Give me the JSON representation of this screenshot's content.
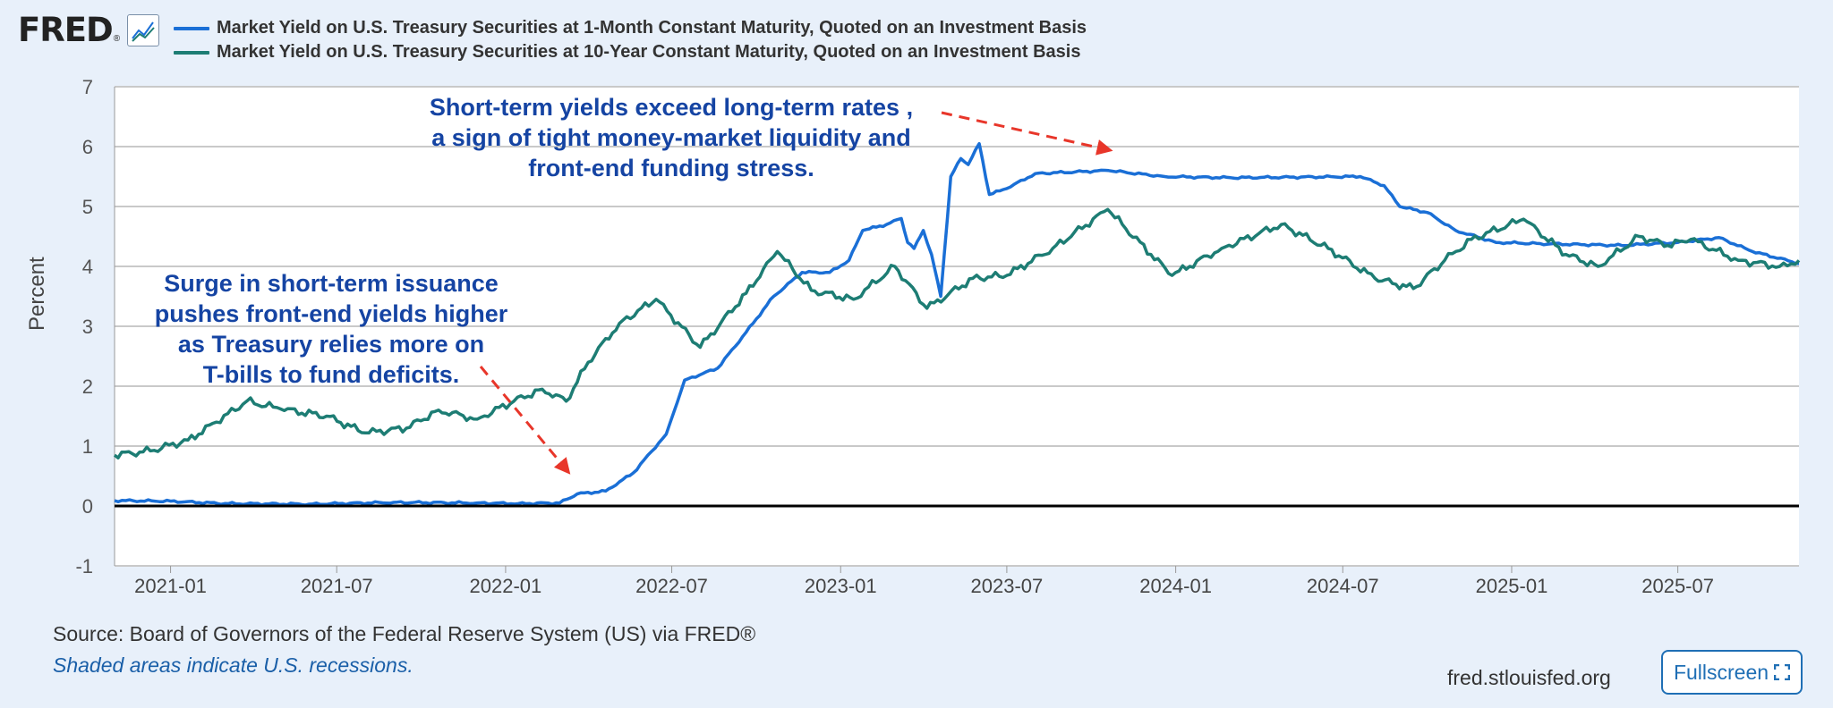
{
  "brand": {
    "logo_text": "FRED",
    "registered_mark": "®"
  },
  "colors": {
    "series1": "#1a6fd6",
    "series2": "#1d7d74",
    "annotation_text": "#1544a3",
    "annotation_arrow": "#e8362a",
    "zero_line": "#000000",
    "grid": "#c9c9c9"
  },
  "legend": [
    {
      "label": "Market Yield on U.S. Treasury Securities at 1-Month Constant Maturity, Quoted on an Investment Basis",
      "color": "#1a6fd6"
    },
    {
      "label": "Market Yield on U.S. Treasury Securities at 10-Year Constant Maturity, Quoted on an Investment Basis",
      "color": "#1d7d74"
    }
  ],
  "chart_data": {
    "type": "line",
    "ylabel": "Percent",
    "ylim": [
      -1,
      7
    ],
    "yticks": [
      -1,
      0,
      1,
      2,
      3,
      4,
      5,
      6,
      7
    ],
    "xlim": [
      "2020-11-01",
      "2025-11-10"
    ],
    "xticks": [
      "2021-01",
      "2021-07",
      "2022-01",
      "2022-07",
      "2023-01",
      "2023-07",
      "2024-01",
      "2024-07",
      "2025-01",
      "2025-07"
    ],
    "grid": true,
    "series": [
      {
        "name": "Market Yield on U.S. Treasury Securities at 1-Month Constant Maturity, Quoted on an Investment Basis",
        "points": [
          [
            "2020-11-01",
            0.09
          ],
          [
            "2021-01-01",
            0.08
          ],
          [
            "2021-03-01",
            0.04
          ],
          [
            "2021-06-01",
            0.03
          ],
          [
            "2021-09-01",
            0.06
          ],
          [
            "2021-12-01",
            0.05
          ],
          [
            "2022-01-15",
            0.04
          ],
          [
            "2022-03-01",
            0.05
          ],
          [
            "2022-03-20",
            0.2
          ],
          [
            "2022-04-20",
            0.25
          ],
          [
            "2022-05-20",
            0.55
          ],
          [
            "2022-06-25",
            1.2
          ],
          [
            "2022-07-15",
            2.1
          ],
          [
            "2022-08-20",
            2.3
          ],
          [
            "2022-09-20",
            2.9
          ],
          [
            "2022-10-20",
            3.5
          ],
          [
            "2022-11-20",
            3.9
          ],
          [
            "2022-12-20",
            3.9
          ],
          [
            "2023-01-10",
            4.1
          ],
          [
            "2023-01-25",
            4.6
          ],
          [
            "2023-02-20",
            4.7
          ],
          [
            "2023-03-08",
            4.8
          ],
          [
            "2023-03-15",
            4.4
          ],
          [
            "2023-03-22",
            4.3
          ],
          [
            "2023-04-01",
            4.6
          ],
          [
            "2023-04-10",
            4.2
          ],
          [
            "2023-04-20",
            3.5
          ],
          [
            "2023-05-01",
            5.5
          ],
          [
            "2023-05-12",
            5.8
          ],
          [
            "2023-05-20",
            5.7
          ],
          [
            "2023-06-01",
            6.05
          ],
          [
            "2023-06-12",
            5.2
          ],
          [
            "2023-07-01",
            5.3
          ],
          [
            "2023-08-01",
            5.55
          ],
          [
            "2023-10-20",
            5.6
          ],
          [
            "2023-12-20",
            5.5
          ],
          [
            "2024-03-01",
            5.48
          ],
          [
            "2024-07-20",
            5.5
          ],
          [
            "2024-08-15",
            5.35
          ],
          [
            "2024-09-01",
            5.0
          ],
          [
            "2024-10-01",
            4.9
          ],
          [
            "2024-11-01",
            4.6
          ],
          [
            "2024-12-15",
            4.4
          ],
          [
            "2025-02-01",
            4.38
          ],
          [
            "2025-05-01",
            4.35
          ],
          [
            "2025-07-01",
            4.4
          ],
          [
            "2025-08-15",
            4.48
          ],
          [
            "2025-09-20",
            4.25
          ],
          [
            "2025-11-10",
            4.05
          ]
        ]
      },
      {
        "name": "Market Yield on U.S. Treasury Securities at 10-Year Constant Maturity, Quoted on an Investment Basis",
        "points": [
          [
            "2020-11-01",
            0.85
          ],
          [
            "2020-12-10",
            0.92
          ],
          [
            "2021-01-20",
            1.1
          ],
          [
            "2021-02-20",
            1.4
          ],
          [
            "2021-03-25",
            1.75
          ],
          [
            "2021-05-01",
            1.62
          ],
          [
            "2021-06-20",
            1.5
          ],
          [
            "2021-08-01",
            1.22
          ],
          [
            "2021-09-15",
            1.3
          ],
          [
            "2021-10-20",
            1.6
          ],
          [
            "2021-12-01",
            1.45
          ],
          [
            "2022-01-10",
            1.75
          ],
          [
            "2022-02-10",
            1.95
          ],
          [
            "2022-03-08",
            1.75
          ],
          [
            "2022-04-01",
            2.4
          ],
          [
            "2022-05-05",
            3.05
          ],
          [
            "2022-06-14",
            3.45
          ],
          [
            "2022-08-01",
            2.65
          ],
          [
            "2022-09-20",
            3.55
          ],
          [
            "2022-10-24",
            4.25
          ],
          [
            "2022-11-30",
            3.6
          ],
          [
            "2023-01-15",
            3.45
          ],
          [
            "2023-03-01",
            4.0
          ],
          [
            "2023-04-05",
            3.3
          ],
          [
            "2023-05-25",
            3.8
          ],
          [
            "2023-07-01",
            3.85
          ],
          [
            "2023-08-20",
            4.3
          ],
          [
            "2023-10-19",
            4.95
          ],
          [
            "2023-12-05",
            4.2
          ],
          [
            "2023-12-28",
            3.85
          ],
          [
            "2024-02-20",
            4.3
          ],
          [
            "2024-04-25",
            4.7
          ],
          [
            "2024-06-15",
            4.3
          ],
          [
            "2024-08-05",
            3.8
          ],
          [
            "2024-09-16",
            3.63
          ],
          [
            "2024-10-20",
            4.1
          ],
          [
            "2024-11-18",
            4.45
          ],
          [
            "2025-01-14",
            4.79
          ],
          [
            "2025-03-01",
            4.2
          ],
          [
            "2025-04-05",
            4.0
          ],
          [
            "2025-05-20",
            4.5
          ],
          [
            "2025-06-20",
            4.35
          ],
          [
            "2025-07-15",
            4.45
          ],
          [
            "2025-09-05",
            4.1
          ],
          [
            "2025-10-20",
            4.0
          ],
          [
            "2025-11-10",
            4.1
          ]
        ]
      }
    ],
    "annotations": [
      {
        "lines": [
          "Short-term yields exceed long-term rates ,",
          "a sign of tight money-market liquidity and",
          "front-end funding stress."
        ]
      },
      {
        "lines": [
          "Surge in short-term issuance",
          "pushes front-end yields higher",
          "as Treasury relies more on",
          "T-bills to fund deficits."
        ]
      }
    ]
  },
  "footer": {
    "source": "Source: Board of Governors of the Federal Reserve System (US) via FRED®",
    "recession_note": "Shaded areas indicate U.S. recessions.",
    "site": "fred.stlouisfed.org",
    "fullscreen_label": "Fullscreen"
  }
}
